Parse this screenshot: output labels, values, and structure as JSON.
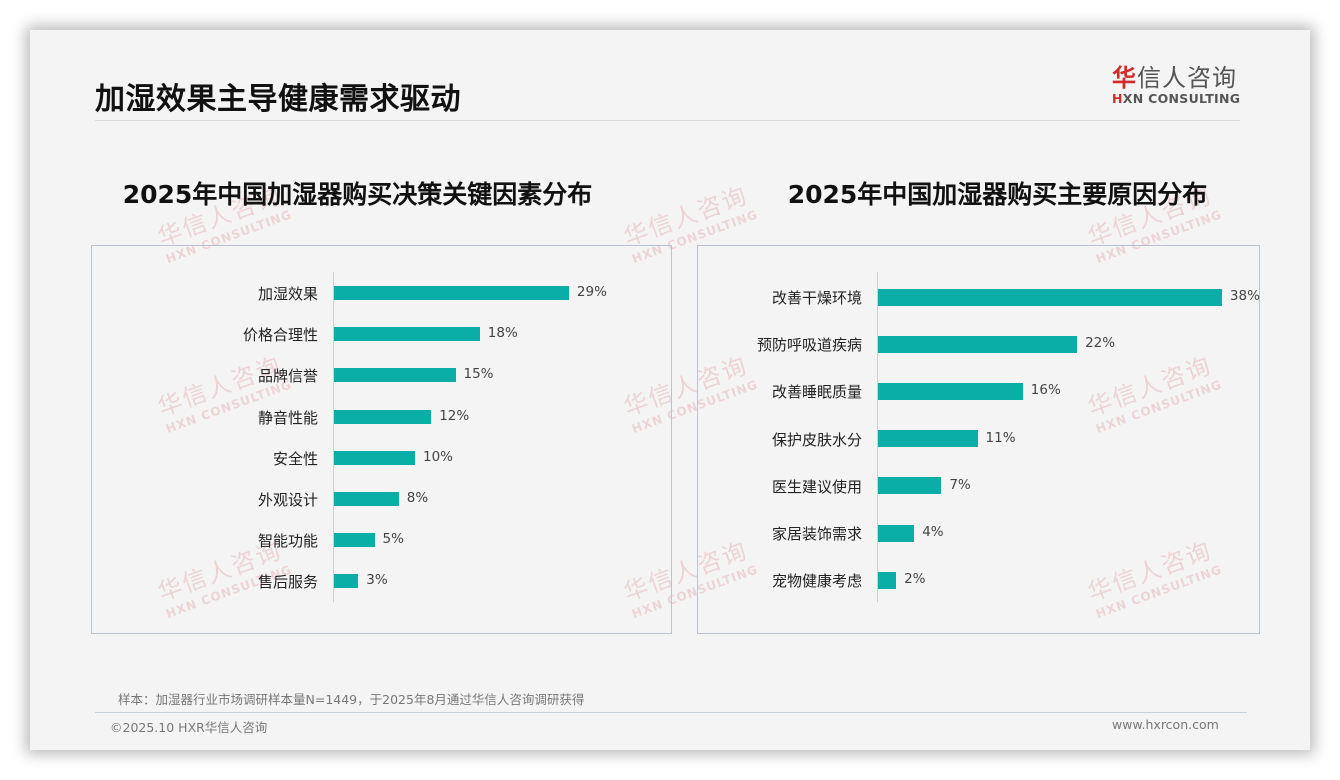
{
  "page": {
    "title": "加湿效果主导健康需求驱动",
    "logo": {
      "cn_accent": "华",
      "cn_rest": "信人咨询",
      "en_accent": "H",
      "en_rest": "XN CONSULTING"
    },
    "watermark": {
      "cn": "华信人咨询",
      "en": "HXN CONSULTING"
    },
    "footnote": "样本：加湿器行业市场调研样本量N=1449，于2025年8月通过华信人咨询调研获得",
    "copyright": "©2025.10 HXR华信人咨询",
    "website": "www.hxrcon.com",
    "colors": {
      "bar": "#0aaea6",
      "background": "#f4f4f4",
      "logo_accent": "#d42a2a"
    }
  },
  "chart_data": [
    {
      "type": "bar",
      "orientation": "horizontal",
      "title": "2025年中国加湿器购买决策关键因素分布",
      "categories": [
        "加湿效果",
        "价格合理性",
        "品牌信誉",
        "静音性能",
        "安全性",
        "外观设计",
        "智能功能",
        "售后服务"
      ],
      "values": [
        29,
        18,
        15,
        12,
        10,
        8,
        5,
        3
      ],
      "labels": [
        "29%",
        "18%",
        "15%",
        "12%",
        "10%",
        "8%",
        "5%",
        "3%"
      ],
      "unit": "%",
      "xlabel": "",
      "ylabel": "",
      "grid": false,
      "legend": null
    },
    {
      "type": "bar",
      "orientation": "horizontal",
      "title": "2025年中国加湿器购买主要原因分布",
      "categories": [
        "改善干燥环境",
        "预防呼吸道疾病",
        "改善睡眠质量",
        "保护皮肤水分",
        "医生建议使用",
        "家居装饰需求",
        "宠物健康考虑"
      ],
      "values": [
        38,
        22,
        16,
        11,
        7,
        4,
        2
      ],
      "labels": [
        "38%",
        "22%",
        "16%",
        "11%",
        "7%",
        "4%",
        "2%"
      ],
      "unit": "%",
      "xlabel": "",
      "ylabel": "",
      "grid": false,
      "legend": null
    }
  ]
}
